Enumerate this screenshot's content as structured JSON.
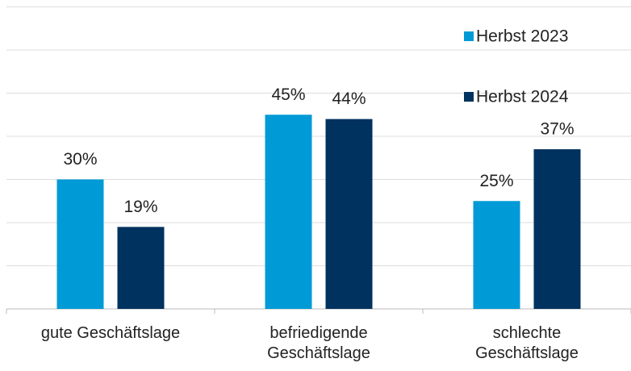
{
  "chart_data": {
    "type": "bar",
    "categories": [
      "gute Geschäftslage",
      "befriedigende\nGeschäftslage",
      "schlechte\nGeschäftslage"
    ],
    "series": [
      {
        "name": "Herbst 2023",
        "color": "#009ad6",
        "values": [
          30,
          45,
          25
        ],
        "value_labels": [
          "30%",
          "45%",
          "25%"
        ]
      },
      {
        "name": "Herbst 2024",
        "color": "#00325f",
        "values": [
          19,
          44,
          37
        ],
        "value_labels": [
          "19%",
          "44%",
          "37%"
        ]
      }
    ],
    "ylim": [
      0,
      70
    ],
    "yticks": [
      0,
      10,
      20,
      30,
      40,
      50,
      60,
      70
    ],
    "grid": true,
    "legend": "top-right"
  }
}
